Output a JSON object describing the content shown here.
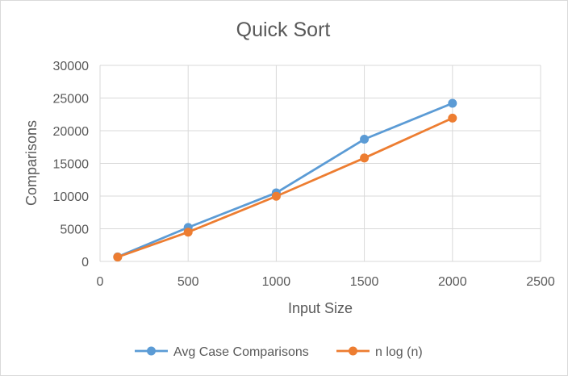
{
  "chart_data": {
    "type": "scatter",
    "title": "Quick Sort",
    "xlabel": "Input Size",
    "ylabel": "Comparisons",
    "xlim": [
      0,
      2500
    ],
    "ylim": [
      0,
      30000
    ],
    "x_ticks": [
      "0",
      "500",
      "1000",
      "1500",
      "2000",
      "2500"
    ],
    "y_ticks": [
      "0",
      "5000",
      "10000",
      "15000",
      "20000",
      "25000",
      "30000"
    ],
    "grid": true,
    "legend_position": "bottom",
    "series": [
      {
        "name": "Avg Case Comparisons",
        "color": "#5b9bd5",
        "points": [
          [
            100,
            700
          ],
          [
            500,
            5200
          ],
          [
            1000,
            10500
          ],
          [
            1500,
            18700
          ],
          [
            2000,
            24200
          ]
        ]
      },
      {
        "name": "n log (n)",
        "color": "#ed7d31",
        "points": [
          [
            100,
            664
          ],
          [
            500,
            4483
          ],
          [
            1000,
            9966
          ],
          [
            1500,
            15826
          ],
          [
            2000,
            21932
          ]
        ]
      }
    ]
  }
}
